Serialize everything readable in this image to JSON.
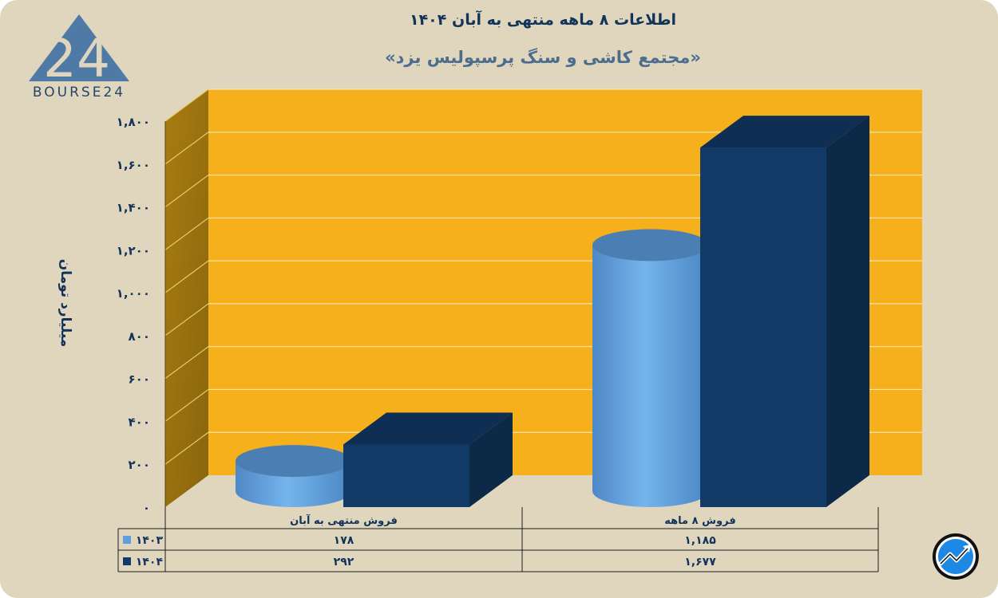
{
  "header": {
    "title": "اطلاعات ۸ ماهه منتهی به آبان ۱۴۰۴",
    "subtitle": "«مجتمع کاشی و سنگ پرسپولیس یزد»"
  },
  "logo": {
    "text": "BOURSE24",
    "mark": "24"
  },
  "colors": {
    "background": "#e0d6be",
    "wall": "#f5b01b",
    "side_wall": "#9c730e",
    "series_1403": "#5f9fdd",
    "series_1404": "#123a66"
  },
  "chart_data": {
    "type": "bar",
    "title": "اطلاعات ۸ ماهه منتهی به آبان ۱۴۰۴",
    "subtitle": "«مجتمع کاشی و سنگ پرسپولیس یزد»",
    "ylabel": "میلیارد تومان",
    "ylim": [
      0,
      1800
    ],
    "yticks": [
      0,
      200,
      400,
      600,
      800,
      1000,
      1200,
      1400,
      1600,
      1800
    ],
    "ytick_labels": [
      "۰",
      "۲۰۰",
      "۴۰۰",
      "۶۰۰",
      "۸۰۰",
      "۱,۰۰۰",
      "۱,۲۰۰",
      "۱,۴۰۰",
      "۱,۶۰۰",
      "۱,۸۰۰"
    ],
    "categories": [
      "فروش منتهی به  آبان",
      "فروش ۸  ماهه"
    ],
    "series": [
      {
        "name": "۱۴۰۳",
        "shape": "cylinder",
        "color": "#5f9fdd",
        "values": [
          178,
          1185
        ],
        "value_labels": [
          "۱۷۸",
          "۱,۱۸۵"
        ]
      },
      {
        "name": "۱۴۰۴",
        "shape": "box",
        "color": "#123a66",
        "values": [
          292,
          1677
        ],
        "value_labels": [
          "۲۹۲",
          "۱,۶۷۷"
        ]
      }
    ],
    "grid": true,
    "legend": "data-table"
  }
}
